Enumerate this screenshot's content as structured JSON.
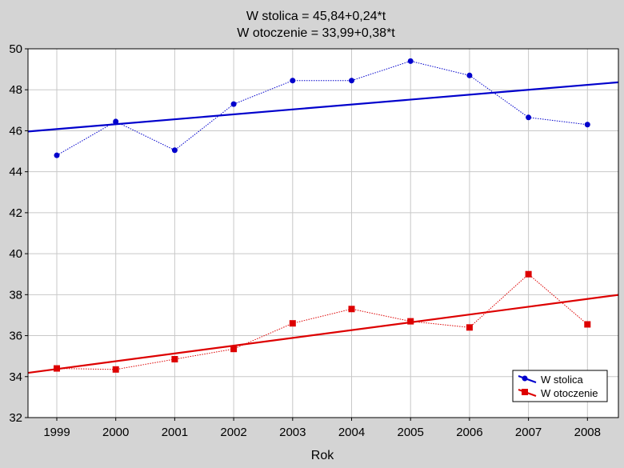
{
  "chart_data": {
    "type": "line",
    "title_line1": "W stolica = 45,84+0,24*t",
    "title_line2": "W otoczenie = 33,99+0,38*t",
    "xlabel": "Rok",
    "ylabel": "",
    "categories": [
      "1999",
      "2000",
      "2001",
      "2002",
      "2003",
      "2004",
      "2005",
      "2006",
      "2007",
      "2008"
    ],
    "ylim": [
      32,
      50
    ],
    "yticks": [
      32,
      34,
      36,
      38,
      40,
      42,
      44,
      46,
      48,
      50
    ],
    "grid": true,
    "legend_position": "bottom-right",
    "series": [
      {
        "name": "W stolica",
        "color": "#0000cc",
        "marker": "circle",
        "values": [
          44.8,
          46.45,
          45.05,
          47.3,
          48.45,
          48.45,
          49.4,
          48.7,
          46.65,
          46.3
        ],
        "trend": {
          "intercept": 45.84,
          "slope": 0.24
        }
      },
      {
        "name": "W otoczenie",
        "color": "#dd0000",
        "marker": "square",
        "values": [
          34.4,
          34.35,
          34.85,
          35.35,
          36.6,
          37.3,
          36.7,
          36.4,
          39.0,
          36.55
        ],
        "trend": {
          "intercept": 33.99,
          "slope": 0.38
        }
      }
    ]
  }
}
